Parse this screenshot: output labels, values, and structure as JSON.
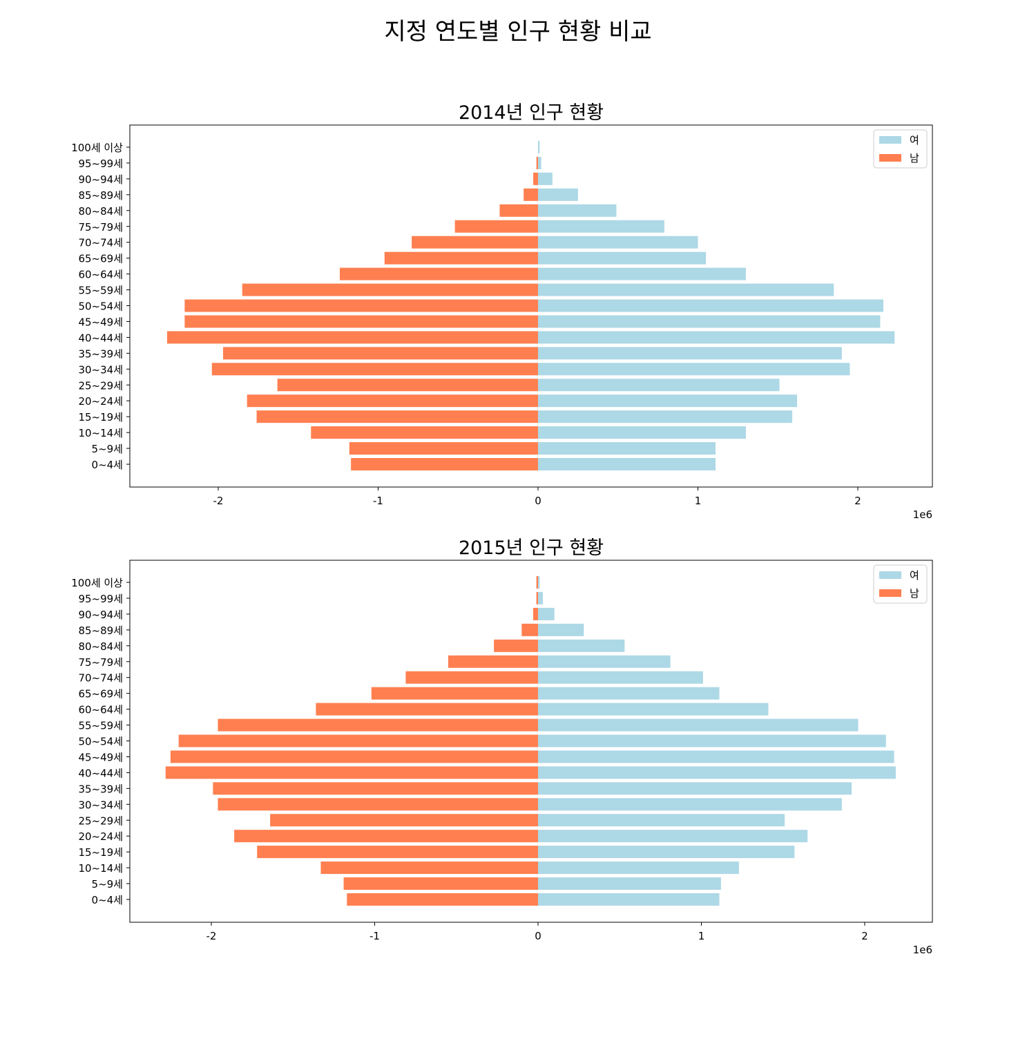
{
  "figure": {
    "suptitle": "지정 연도별 인구 현황 비교",
    "colors": {
      "female": "#add8e6",
      "male": "#ff7f50"
    }
  },
  "chart_data": [
    {
      "type": "bar",
      "orientation": "horizontal",
      "title": "2014년 인구 현황",
      "xlabel": "",
      "ylabel": "",
      "x_scale_label": "1e6",
      "xlim": [
        -2.5,
        2.5
      ],
      "x_ticks": [
        -2,
        -1,
        0,
        1,
        2
      ],
      "x_tick_labels": [
        "-2",
        "-1",
        "0",
        "1",
        "2"
      ],
      "grid": false,
      "legend_position": "top-right",
      "categories": [
        "0~4세",
        "5~9세",
        "10~14세",
        "15~19세",
        "20~24세",
        "25~29세",
        "30~34세",
        "35~39세",
        "40~44세",
        "45~49세",
        "50~54세",
        "55~59세",
        "60~64세",
        "65~69세",
        "70~74세",
        "75~79세",
        "80~84세",
        "85~89세",
        "90~94세",
        "95~99세",
        "100세 이상"
      ],
      "series": [
        {
          "name": "여",
          "color": "#add8e6",
          "values": [
            1.11,
            1.11,
            1.3,
            1.59,
            1.62,
            1.51,
            1.95,
            1.9,
            2.23,
            2.14,
            2.16,
            1.85,
            1.3,
            1.05,
            1.0,
            0.79,
            0.49,
            0.25,
            0.09,
            0.02,
            0.01
          ]
        },
        {
          "name": "남",
          "color": "#ff7f50",
          "values": [
            -1.17,
            -1.18,
            -1.42,
            -1.76,
            -1.82,
            -1.63,
            -2.04,
            -1.97,
            -2.32,
            -2.21,
            -2.21,
            -1.85,
            -1.24,
            -0.96,
            -0.79,
            -0.52,
            -0.24,
            -0.09,
            -0.03,
            -0.01,
            0.0
          ]
        }
      ]
    },
    {
      "type": "bar",
      "orientation": "horizontal",
      "title": "2015년 인구 현황",
      "xlabel": "",
      "ylabel": "",
      "x_scale_label": "1e6",
      "xlim": [
        -2.5,
        2.42
      ],
      "x_ticks": [
        -2,
        -1,
        0,
        1,
        2
      ],
      "x_tick_labels": [
        "-2",
        "-1",
        "0",
        "1",
        "2"
      ],
      "grid": false,
      "legend_position": "top-right",
      "categories": [
        "0~4세",
        "5~9세",
        "10~14세",
        "15~19세",
        "20~24세",
        "25~29세",
        "30~34세",
        "35~39세",
        "40~44세",
        "45~49세",
        "50~54세",
        "55~59세",
        "60~64세",
        "65~69세",
        "70~74세",
        "75~79세",
        "80~84세",
        "85~89세",
        "90~94세",
        "95~99세",
        "100세 이상"
      ],
      "series": [
        {
          "name": "여",
          "color": "#add8e6",
          "values": [
            1.11,
            1.12,
            1.23,
            1.57,
            1.65,
            1.51,
            1.86,
            1.92,
            2.19,
            2.18,
            2.13,
            1.96,
            1.41,
            1.11,
            1.01,
            0.81,
            0.53,
            0.28,
            0.1,
            0.03,
            0.01
          ]
        },
        {
          "name": "남",
          "color": "#ff7f50",
          "values": [
            -1.17,
            -1.19,
            -1.33,
            -1.72,
            -1.86,
            -1.64,
            -1.96,
            -1.99,
            -2.28,
            -2.25,
            -2.2,
            -1.96,
            -1.36,
            -1.02,
            -0.81,
            -0.55,
            -0.27,
            -0.1,
            -0.03,
            -0.01,
            -0.01
          ]
        }
      ]
    }
  ]
}
